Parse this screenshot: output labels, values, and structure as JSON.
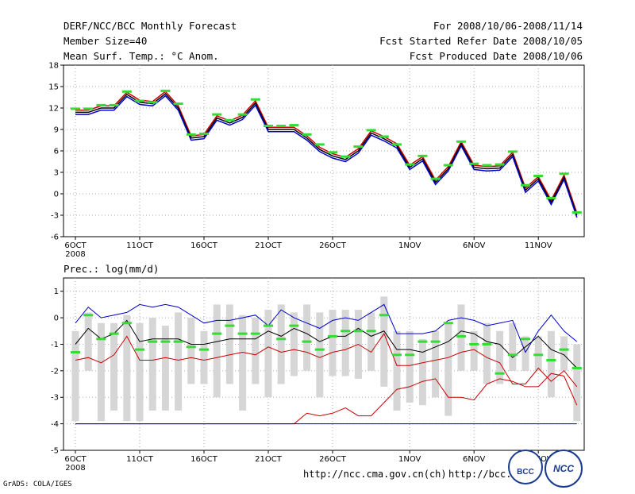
{
  "header": {
    "title": "DERF/NCC/BCC Monthly Forecast",
    "member_size": "Member Size=40",
    "temp_label": "Mean Surf. Temp.: °C Anom.",
    "period": "For 2008/10/06-2008/11/14",
    "refer_date": "Fcst Started Refer Date 2008/10/05",
    "produced_date": "Fcst Produced Date 2008/10/06"
  },
  "footer": {
    "grads": "GrADS: COLA/IGES",
    "url1": "http://ncc.cma.gov.cn(ch)",
    "url2": "http://bcc.c",
    "logo_bcc": "BCC",
    "logo_ncc": "NCC"
  },
  "colors": {
    "ensemble_member": "#cc0000",
    "mean": "#000000",
    "upper": "#0000cc",
    "marker": "#33dd33",
    "box": "#d6d6d6",
    "grid": "#aaaaaa"
  },
  "chart_data": [
    {
      "type": "line",
      "title": "Mean Surf. Temp.: °C Anom.",
      "x": [
        1,
        2,
        3,
        4,
        5,
        6,
        7,
        8,
        9,
        10,
        11,
        12,
        13,
        14,
        15,
        16,
        17,
        18,
        19,
        20,
        21,
        22,
        23,
        24,
        25,
        26,
        27,
        28,
        29,
        30,
        31,
        32,
        33,
        34,
        35,
        36,
        37,
        38,
        39,
        40
      ],
      "xticks": [
        {
          "day": 1,
          "label": "6OCT"
        },
        {
          "day": 6,
          "label": "11OCT"
        },
        {
          "day": 11,
          "label": "16OCT"
        },
        {
          "day": 16,
          "label": "21OCT"
        },
        {
          "day": 21,
          "label": "26OCT"
        },
        {
          "day": 27,
          "label": "1NOV"
        },
        {
          "day": 32,
          "label": "6NOV"
        },
        {
          "day": 37,
          "label": "11NOV"
        }
      ],
      "year_label": "2008",
      "ylim": [
        -6,
        18
      ],
      "yticks": [
        -6,
        -3,
        0,
        3,
        6,
        9,
        12,
        15,
        18
      ],
      "series": [
        {
          "name": "ensemble-upper",
          "color": "#cc0000",
          "values": [
            11.7,
            11.7,
            12.3,
            12.3,
            14.2,
            13.1,
            12.9,
            14.3,
            12.3,
            8.1,
            8.3,
            10.9,
            10.2,
            11.0,
            13.0,
            9.3,
            9.3,
            9.3,
            8.1,
            6.5,
            5.6,
            5.1,
            6.3,
            8.8,
            8.0,
            7.0,
            4.0,
            5.2,
            1.9,
            3.8,
            7.3,
            4.0,
            3.8,
            3.9,
            5.8,
            0.8,
            2.4,
            -0.9,
            2.6,
            -2.7
          ]
        },
        {
          "name": "ensemble-mean",
          "color": "#000000",
          "values": [
            11.4,
            11.4,
            12.0,
            12.0,
            13.9,
            12.8,
            12.6,
            14.0,
            12.0,
            7.8,
            8.0,
            10.6,
            9.9,
            10.7,
            12.7,
            9.0,
            9.0,
            9.0,
            7.8,
            6.2,
            5.3,
            4.8,
            6.0,
            8.5,
            7.7,
            6.7,
            3.7,
            4.9,
            1.6,
            3.5,
            7.0,
            3.7,
            3.5,
            3.6,
            5.5,
            0.5,
            2.1,
            -1.2,
            2.3,
            -3.0
          ]
        },
        {
          "name": "ensemble-lower",
          "color": "#0000cc",
          "values": [
            11.1,
            11.1,
            11.7,
            11.7,
            13.6,
            12.5,
            12.3,
            13.7,
            11.7,
            7.5,
            7.7,
            10.3,
            9.6,
            10.4,
            12.4,
            8.7,
            8.7,
            8.7,
            7.5,
            5.9,
            5.0,
            4.5,
            5.7,
            8.2,
            7.4,
            6.4,
            3.4,
            4.6,
            1.3,
            3.2,
            6.7,
            3.4,
            3.2,
            3.3,
            5.2,
            0.2,
            1.8,
            -1.5,
            2.0,
            -3.3
          ]
        },
        {
          "name": "observation-marker",
          "color": "#33dd33",
          "values": [
            11.9,
            11.9,
            12.4,
            12.4,
            14.3,
            13.0,
            12.8,
            14.4,
            12.6,
            8.3,
            8.4,
            11.1,
            10.3,
            11.1,
            13.2,
            9.5,
            9.5,
            9.6,
            8.3,
            6.9,
            5.8,
            5.2,
            6.6,
            8.9,
            8.0,
            6.9,
            4.1,
            5.3,
            2.1,
            4.0,
            7.3,
            4.2,
            4.0,
            4.1,
            5.9,
            1.2,
            2.5,
            -0.6,
            2.8,
            -2.6
          ]
        }
      ]
    },
    {
      "type": "line",
      "title": "Prec.: log(mm/d)",
      "x": [
        1,
        2,
        3,
        4,
        5,
        6,
        7,
        8,
        9,
        10,
        11,
        12,
        13,
        14,
        15,
        16,
        17,
        18,
        19,
        20,
        21,
        22,
        23,
        24,
        25,
        26,
        27,
        28,
        29,
        30,
        31,
        32,
        33,
        34,
        35,
        36,
        37,
        38,
        39,
        40
      ],
      "xticks": [
        {
          "day": 1,
          "label": "6OCT"
        },
        {
          "day": 6,
          "label": "11OCT"
        },
        {
          "day": 11,
          "label": "16OCT"
        },
        {
          "day": 16,
          "label": "21OCT"
        },
        {
          "day": 21,
          "label": "26OCT"
        },
        {
          "day": 27,
          "label": "1NOV"
        },
        {
          "day": 32,
          "label": "6NOV"
        },
        {
          "day": 37,
          "label": "11NOV"
        }
      ],
      "year_label": "2008",
      "ylim": [
        -5,
        1.5
      ],
      "yticks": [
        -5,
        -4,
        -3,
        -2,
        -1,
        0,
        1
      ],
      "boxes": {
        "low": [
          -3.9,
          -2.0,
          -3.9,
          -3.5,
          -3.9,
          -3.9,
          -3.5,
          -3.5,
          -3.5,
          -2.5,
          -2.5,
          -3.0,
          -2.5,
          -3.5,
          -2.5,
          -3.0,
          -2.5,
          -2.2,
          -2.0,
          -3.0,
          -2.2,
          -2.2,
          -2.3,
          -2.0,
          -2.6,
          -3.5,
          -3.2,
          -3.3,
          -3.0,
          -3.7,
          -2.0,
          -2.0,
          -2.5,
          -2.5,
          -2.0,
          -2.0,
          -2.0,
          -3.0,
          -2.0,
          -3.9
        ],
        "high": [
          -0.5,
          0.2,
          -0.2,
          -0.2,
          0.1,
          -0.2,
          0.0,
          -0.3,
          0.2,
          0.0,
          -0.5,
          0.5,
          0.5,
          0.1,
          0.0,
          0.3,
          0.5,
          0.2,
          0.5,
          0.2,
          0.3,
          0.3,
          0.3,
          0.2,
          0.8,
          -0.5,
          -0.5,
          -0.8,
          -0.5,
          -0.2,
          0.5,
          -0.5,
          -0.2,
          -0.5,
          -0.2,
          -0.7,
          -0.7,
          -0.5,
          -0.7,
          -1.0
        ]
      },
      "series": [
        {
          "name": "upper-bound",
          "color": "#0000cc",
          "values": [
            -0.2,
            0.4,
            0.0,
            0.1,
            0.2,
            0.5,
            0.4,
            0.5,
            0.4,
            0.1,
            -0.2,
            -0.1,
            -0.1,
            0.0,
            0.1,
            -0.3,
            0.3,
            0.0,
            -0.2,
            -0.4,
            -0.1,
            0.0,
            -0.1,
            0.2,
            0.5,
            -0.6,
            -0.6,
            -0.6,
            -0.5,
            -0.1,
            0.0,
            -0.1,
            -0.3,
            -0.2,
            -0.1,
            -1.3,
            -0.5,
            0.1,
            -0.5,
            -0.9
          ]
        },
        {
          "name": "ensemble-mean",
          "color": "#000000",
          "values": [
            -1.0,
            -0.4,
            -0.8,
            -0.6,
            -0.1,
            -0.9,
            -0.8,
            -0.8,
            -0.8,
            -1.0,
            -1.0,
            -0.9,
            -0.8,
            -0.8,
            -0.8,
            -0.5,
            -0.7,
            -0.4,
            -0.6,
            -0.9,
            -0.7,
            -0.7,
            -0.4,
            -0.7,
            -0.5,
            -1.2,
            -1.2,
            -1.3,
            -1.1,
            -0.9,
            -0.5,
            -0.6,
            -0.9,
            -1.0,
            -1.5,
            -1.1,
            -0.7,
            -1.2,
            -1.4,
            -1.9
          ]
        },
        {
          "name": "ensemble-spread",
          "color": "#cc0000",
          "values": [
            -1.6,
            -1.5,
            -1.7,
            -1.4,
            -0.7,
            -1.6,
            -1.6,
            -1.5,
            -1.6,
            -1.5,
            -1.6,
            -1.5,
            -1.4,
            -1.3,
            -1.4,
            -1.1,
            -1.3,
            -1.2,
            -1.3,
            -1.5,
            -1.3,
            -1.2,
            -1.0,
            -1.3,
            -0.6,
            -1.8,
            -1.8,
            -1.7,
            -1.6,
            -1.5,
            -1.3,
            -1.2,
            -1.5,
            -1.7,
            -2.5,
            -2.5,
            -1.9,
            -2.4,
            -2.0,
            -2.6
          ]
        },
        {
          "name": "lower-bound",
          "color": "#cc0000",
          "values": [
            -4.0,
            -4.0,
            -4.0,
            -4.0,
            -4.0,
            -4.0,
            -4.0,
            -4.0,
            -4.0,
            -4.0,
            -4.0,
            -4.0,
            -4.0,
            -4.0,
            -4.0,
            -4.0,
            -4.0,
            -4.0,
            -3.6,
            -3.7,
            -3.6,
            -3.4,
            -3.7,
            -3.7,
            -3.2,
            -2.7,
            -2.6,
            -2.4,
            -2.3,
            -3.0,
            -3.0,
            -3.1,
            -2.5,
            -2.3,
            -2.4,
            -2.6,
            -2.6,
            -2.1,
            -2.2,
            -3.3
          ]
        },
        {
          "name": "baseline",
          "color": "#0000cc",
          "values": [
            -4.0,
            -4.0,
            -4.0,
            -4.0,
            -4.0,
            -4.0,
            -4.0,
            -4.0,
            -4.0,
            -4.0,
            -4.0,
            -4.0,
            -4.0,
            -4.0,
            -4.0,
            -4.0,
            -4.0,
            -4.0,
            -4.0,
            -4.0,
            -4.0,
            -4.0,
            -4.0,
            -4.0,
            -4.0,
            -4.0,
            -4.0,
            -4.0,
            -4.0,
            -4.0,
            -4.0,
            -4.0,
            -4.0,
            -4.0,
            -4.0,
            -4.0,
            -4.0,
            -4.0,
            -4.0,
            -4.0
          ]
        },
        {
          "name": "observation-marker",
          "color": "#33dd33",
          "values": [
            -1.3,
            0.1,
            -0.8,
            -0.6,
            -0.2,
            -1.2,
            -0.9,
            -0.9,
            -0.9,
            -1.1,
            -1.2,
            -0.6,
            -0.3,
            -0.6,
            -0.6,
            -0.3,
            -0.8,
            -0.3,
            -0.9,
            -1.2,
            -0.7,
            -0.5,
            -0.5,
            -0.5,
            0.1,
            -1.4,
            -1.4,
            -0.9,
            -0.9,
            -0.2,
            -0.7,
            -1.0,
            -1.0,
            -2.1,
            -1.4,
            -0.8,
            -1.4,
            -1.6,
            -1.2,
            -1.9
          ]
        }
      ]
    }
  ]
}
